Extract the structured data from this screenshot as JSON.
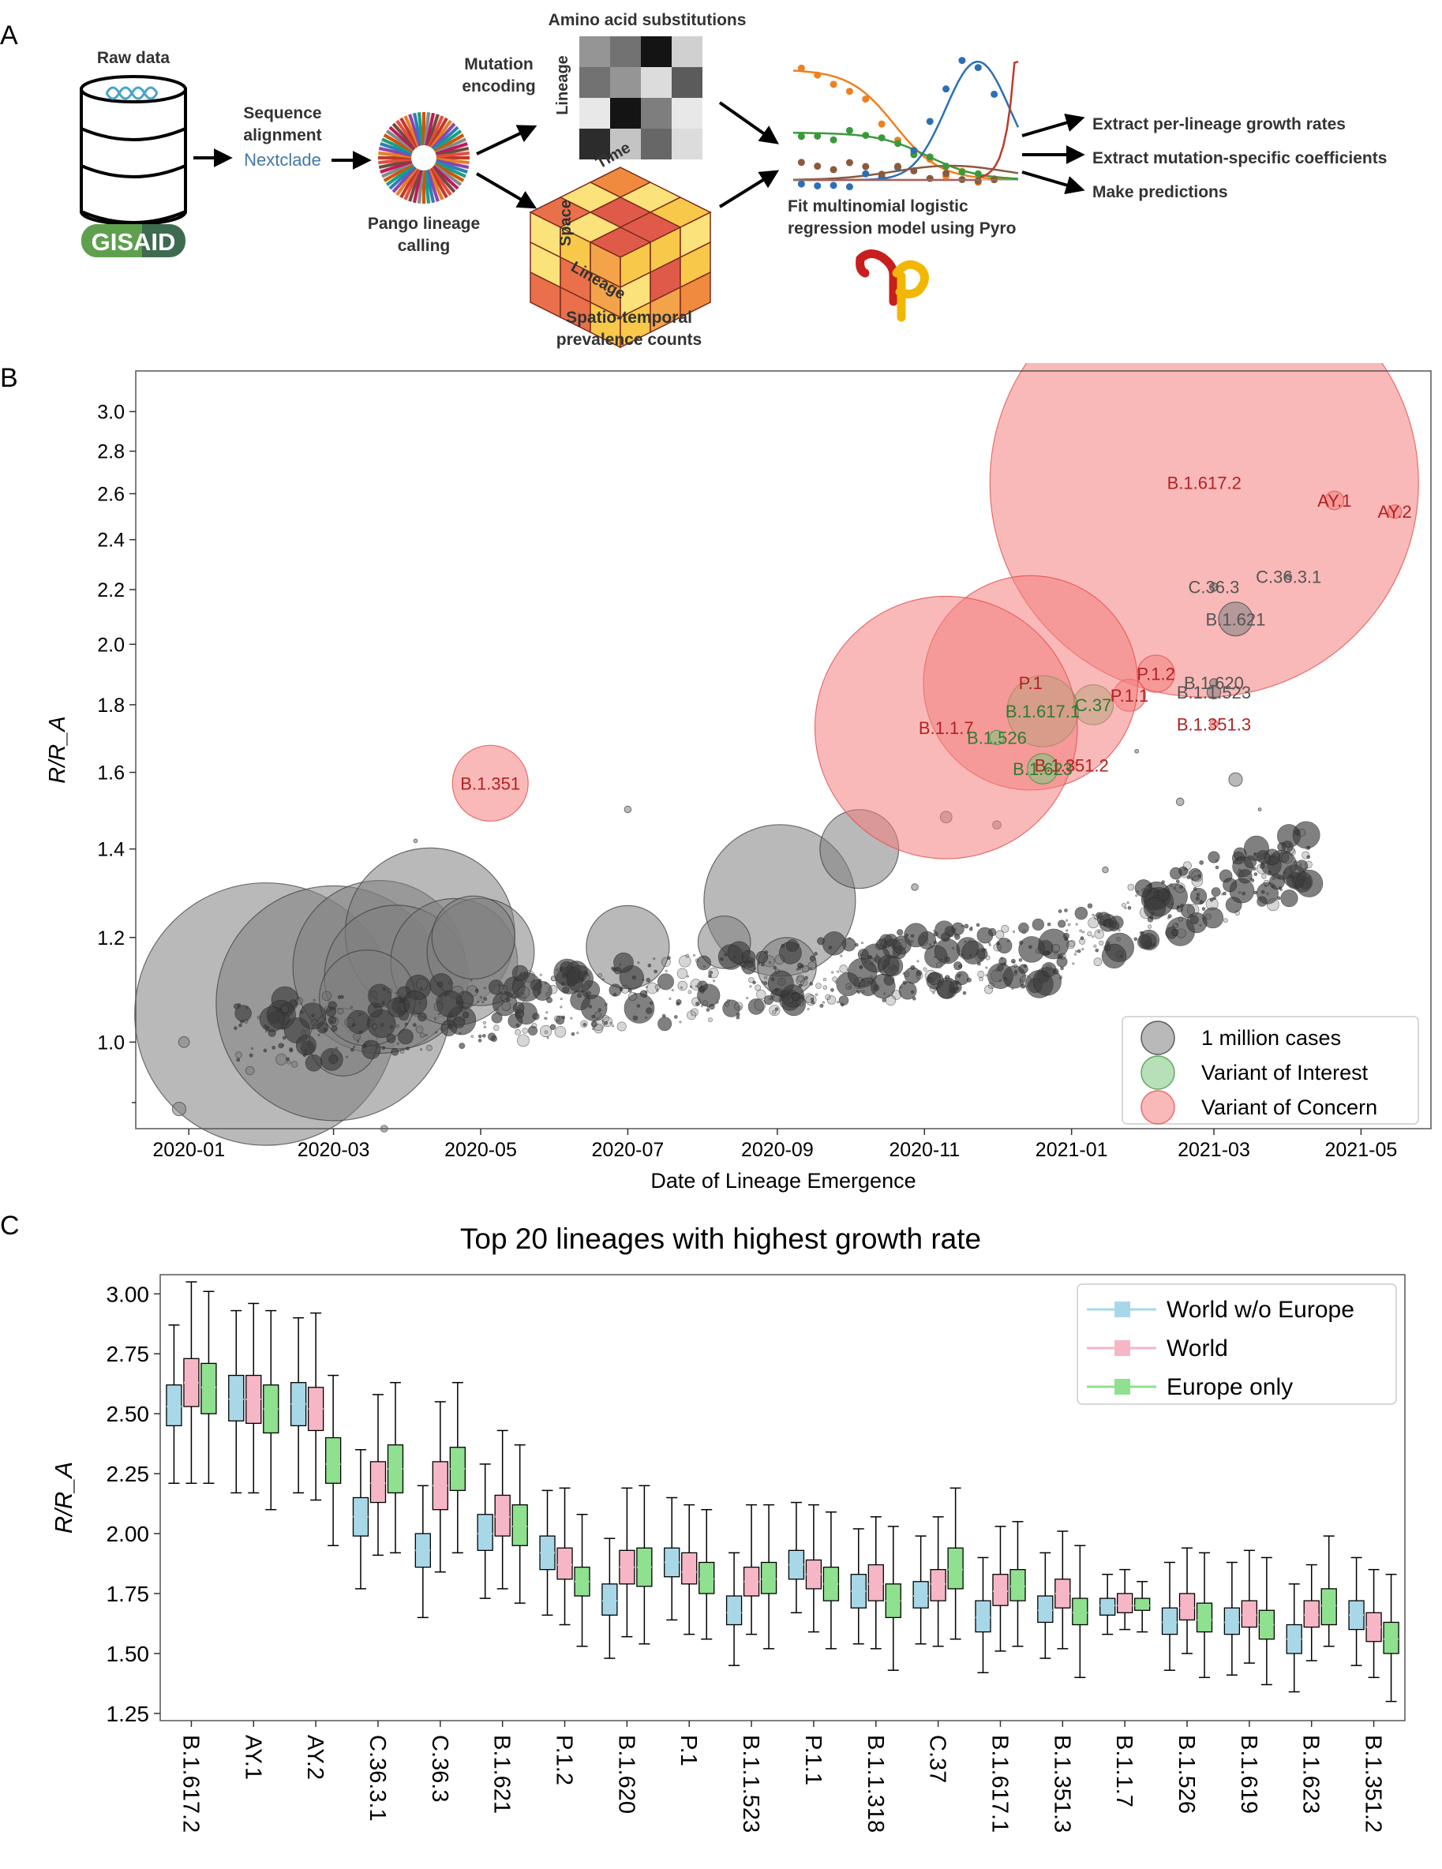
{
  "panels": {
    "a": {
      "letter": "A",
      "raw_data": "Raw data",
      "gisaid": "GISAID",
      "sequence_alignment_1": "Sequence",
      "sequence_alignment_2": "alignment",
      "nextclade": "Nextclade",
      "pango_1": "Pango lineage",
      "pango_2": "calling",
      "mutation_encoding_1": "Mutation",
      "mutation_encoding_2": "encoding",
      "amino_acid": "Amino acid substitutions",
      "lineage_axis": "Lineage",
      "cube_time": "Time",
      "cube_space": "Space",
      "cube_lineage": "Lineage",
      "spatio_1": "Spatio-temporal",
      "spatio_2": "prevalence counts",
      "fit_1": "Fit multinomial logistic",
      "fit_2": "regression model using Pyro",
      "out_1": "Extract per-lineage growth rates",
      "out_2": "Extract mutation-specific coefficients",
      "out_3": "Make predictions",
      "heatmap": [
        [
          0.45,
          0.6,
          1.0,
          0.2
        ],
        [
          0.6,
          0.45,
          0.15,
          0.7
        ],
        [
          0.1,
          1.0,
          0.55,
          0.1
        ],
        [
          0.9,
          0.25,
          0.65,
          0.15
        ]
      ]
    },
    "b": {
      "letter": "B"
    },
    "c": {
      "letter": "C"
    }
  },
  "colors": {
    "voc": "#f47f7f",
    "voi": "#7ec77e",
    "other": "#808080",
    "voc_text": "#b22222",
    "voi_text": "#2e7d32",
    "other_text": "#555555",
    "world_wo_europe": "#a8d8e8",
    "world": "#f7b6c6",
    "europe_only": "#8fe08f"
  },
  "chart_data": [
    {
      "type": "scatter",
      "xlabel": "Date of Lineage Emergence",
      "ylabel": "R/R_A",
      "x_ticks": [
        "2020-01",
        "2020-03",
        "2020-05",
        "2020-07",
        "2020-09",
        "2020-11",
        "2021-01",
        "2021-03",
        "2021-05"
      ],
      "y_ticks": [
        1.0,
        1.2,
        1.4,
        1.6,
        1.8,
        2.0,
        2.2,
        2.4,
        2.6,
        2.8,
        3.0
      ],
      "ylim": [
        0.86,
        3.22
      ],
      "y_scale": "log",
      "legend": [
        "1 million cases",
        "Variant of Interest",
        "Variant of Concern"
      ],
      "legend_position": "bottom-right",
      "labeled_points": [
        {
          "label": "B.1.617.2",
          "x": "2021-02-25",
          "y": 2.65,
          "category": "voc",
          "cases": 8000000
        },
        {
          "label": "AY.1",
          "x": "2021-04-20",
          "y": 2.57,
          "category": "voc",
          "cases": 15000
        },
        {
          "label": "AY.2",
          "x": "2021-05-15",
          "y": 2.52,
          "category": "voc",
          "cases": 8000
        },
        {
          "label": "C.36.3",
          "x": "2021-03-01",
          "y": 2.21,
          "category": "other",
          "cases": 3000
        },
        {
          "label": "C.36.3.1",
          "x": "2021-04-01",
          "y": 2.25,
          "category": "other",
          "cases": 1500
        },
        {
          "label": "B.1.621",
          "x": "2021-03-10",
          "y": 2.09,
          "category": "other",
          "cases": 50000
        },
        {
          "label": "P.1.2",
          "x": "2021-02-05",
          "y": 1.9,
          "category": "voc",
          "cases": 60000
        },
        {
          "label": "B.1.620",
          "x": "2021-03-01",
          "y": 1.87,
          "category": "other",
          "cases": 3000
        },
        {
          "label": "B.1.1.523",
          "x": "2021-03-01",
          "y": 1.84,
          "category": "other",
          "cases": 8000
        },
        {
          "label": "P.1.1",
          "x": "2021-01-25",
          "y": 1.83,
          "category": "voc",
          "cases": 45000
        },
        {
          "label": "C.37",
          "x": "2021-01-10",
          "y": 1.8,
          "category": "voi",
          "cases": 70000
        },
        {
          "label": "P.1",
          "x": "2020-12-15",
          "y": 1.87,
          "category": "voc",
          "cases": 2000000
        },
        {
          "label": "B.1.617.1",
          "x": "2020-12-20",
          "y": 1.78,
          "category": "voi",
          "cases": 220000
        },
        {
          "label": "B.1.351.3",
          "x": "2021-03-01",
          "y": 1.74,
          "category": "voc",
          "cases": 3000
        },
        {
          "label": "B.1.1.7",
          "x": "2020-11-10",
          "y": 1.73,
          "category": "voc",
          "cases": 3000000
        },
        {
          "label": "B.1.526",
          "x": "2020-12-01",
          "y": 1.7,
          "category": "voi",
          "cases": 9000
        },
        {
          "label": "B.1.351.2",
          "x": "2021-01-01",
          "y": 1.62,
          "category": "voc",
          "cases": 4000
        },
        {
          "label": "B.1.623",
          "x": "2020-12-20",
          "y": 1.61,
          "category": "voi",
          "cases": 40000
        },
        {
          "label": "B.1.351",
          "x": "2020-05-05",
          "y": 1.57,
          "category": "voc",
          "cases": 250000
        }
      ]
    },
    {
      "type": "box",
      "title": "Top 20 lineages with highest growth rate",
      "ylabel": "R/R_A",
      "ylim": [
        1.22,
        3.08
      ],
      "y_ticks": [
        1.25,
        1.5,
        1.75,
        2.0,
        2.25,
        2.5,
        2.75,
        3.0
      ],
      "y_tick_labels": [
        "1.25",
        "1.50",
        "1.75",
        "2.00",
        "2.25",
        "2.50",
        "2.75",
        "3.00"
      ],
      "legend_position": "top-right",
      "categories": [
        "B.1.617.2",
        "AY.1",
        "AY.2",
        "C.36.3.1",
        "C.36.3",
        "B.1.621",
        "P.1.2",
        "B.1.620",
        "P.1",
        "B.1.1.523",
        "P.1.1",
        "B.1.1.318",
        "C.37",
        "B.1.617.1",
        "B.1.351.3",
        "B.1.1.7",
        "B.1.526",
        "B.1.619",
        "B.1.623",
        "B.1.351.2"
      ],
      "series": [
        {
          "name": "World w/o Europe",
          "boxes": [
            [
              2.21,
              2.45,
              2.53,
              2.62,
              2.87
            ],
            [
              2.17,
              2.47,
              2.56,
              2.66,
              2.93
            ],
            [
              2.17,
              2.45,
              2.54,
              2.63,
              2.9
            ],
            [
              1.77,
              1.99,
              2.07,
              2.15,
              2.35
            ],
            [
              1.65,
              1.86,
              1.93,
              2.0,
              2.2
            ],
            [
              1.73,
              1.93,
              2.0,
              2.08,
              2.29
            ],
            [
              1.66,
              1.85,
              1.92,
              1.99,
              2.18
            ],
            [
              1.48,
              1.66,
              1.72,
              1.79,
              1.98
            ],
            [
              1.64,
              1.82,
              1.88,
              1.94,
              2.15
            ],
            [
              1.45,
              1.62,
              1.67,
              1.74,
              1.92
            ],
            [
              1.67,
              1.81,
              1.87,
              1.93,
              2.13
            ],
            [
              1.54,
              1.69,
              1.76,
              1.83,
              2.02
            ],
            [
              1.54,
              1.69,
              1.74,
              1.8,
              1.99
            ],
            [
              1.42,
              1.59,
              1.65,
              1.72,
              1.9
            ],
            [
              1.48,
              1.63,
              1.68,
              1.74,
              1.92
            ],
            [
              1.58,
              1.66,
              1.7,
              1.73,
              1.83
            ],
            [
              1.43,
              1.58,
              1.63,
              1.69,
              1.88
            ],
            [
              1.41,
              1.58,
              1.63,
              1.69,
              1.88
            ],
            [
              1.34,
              1.5,
              1.56,
              1.62,
              1.79
            ],
            [
              1.45,
              1.6,
              1.66,
              1.72,
              1.9
            ]
          ]
        },
        {
          "name": "World",
          "boxes": [
            [
              2.21,
              2.53,
              2.63,
              2.73,
              3.05
            ],
            [
              2.17,
              2.46,
              2.56,
              2.66,
              2.96
            ],
            [
              2.14,
              2.43,
              2.52,
              2.61,
              2.92
            ],
            [
              1.91,
              2.13,
              2.21,
              2.3,
              2.58
            ],
            [
              1.84,
              2.1,
              2.2,
              2.3,
              2.55
            ],
            [
              1.77,
              1.99,
              2.07,
              2.16,
              2.43
            ],
            [
              1.62,
              1.81,
              1.87,
              1.94,
              2.19
            ],
            [
              1.57,
              1.79,
              1.86,
              1.93,
              2.19
            ],
            [
              1.58,
              1.79,
              1.84,
              1.92,
              2.12
            ],
            [
              1.58,
              1.74,
              1.8,
              1.86,
              2.12
            ],
            [
              1.59,
              1.77,
              1.83,
              1.89,
              2.12
            ],
            [
              1.52,
              1.72,
              1.79,
              1.87,
              2.07
            ],
            [
              1.53,
              1.72,
              1.79,
              1.85,
              2.07
            ],
            [
              1.51,
              1.7,
              1.76,
              1.83,
              2.03
            ],
            [
              1.52,
              1.69,
              1.75,
              1.81,
              2.01
            ],
            [
              1.6,
              1.67,
              1.7,
              1.75,
              1.85
            ],
            [
              1.5,
              1.64,
              1.69,
              1.75,
              1.94
            ],
            [
              1.46,
              1.61,
              1.66,
              1.72,
              1.93
            ],
            [
              1.47,
              1.61,
              1.66,
              1.72,
              1.87
            ],
            [
              1.4,
              1.55,
              1.61,
              1.67,
              1.85
            ]
          ]
        },
        {
          "name": "Europe only",
          "boxes": [
            [
              2.21,
              2.5,
              2.61,
              2.71,
              3.01
            ],
            [
              2.1,
              2.42,
              2.52,
              2.62,
              2.93
            ],
            [
              1.95,
              2.21,
              2.29,
              2.4,
              2.66
            ],
            [
              1.92,
              2.17,
              2.27,
              2.37,
              2.63
            ],
            [
              1.92,
              2.18,
              2.27,
              2.36,
              2.63
            ],
            [
              1.71,
              1.95,
              2.03,
              2.12,
              2.37
            ],
            [
              1.53,
              1.74,
              1.8,
              1.86,
              2.08
            ],
            [
              1.54,
              1.78,
              1.86,
              1.94,
              2.2
            ],
            [
              1.56,
              1.75,
              1.81,
              1.88,
              2.1
            ],
            [
              1.52,
              1.75,
              1.81,
              1.88,
              2.12
            ],
            [
              1.52,
              1.72,
              1.79,
              1.86,
              2.09
            ],
            [
              1.43,
              1.65,
              1.72,
              1.79,
              2.03
            ],
            [
              1.56,
              1.77,
              1.85,
              1.94,
              2.19
            ],
            [
              1.53,
              1.72,
              1.78,
              1.85,
              2.05
            ],
            [
              1.4,
              1.62,
              1.67,
              1.73,
              1.95
            ],
            [
              1.59,
              1.68,
              1.7,
              1.73,
              1.8
            ],
            [
              1.4,
              1.59,
              1.64,
              1.71,
              1.92
            ],
            [
              1.37,
              1.56,
              1.62,
              1.68,
              1.9
            ],
            [
              1.53,
              1.62,
              1.7,
              1.77,
              1.99
            ],
            [
              1.3,
              1.5,
              1.56,
              1.63,
              1.83
            ]
          ]
        }
      ]
    }
  ]
}
